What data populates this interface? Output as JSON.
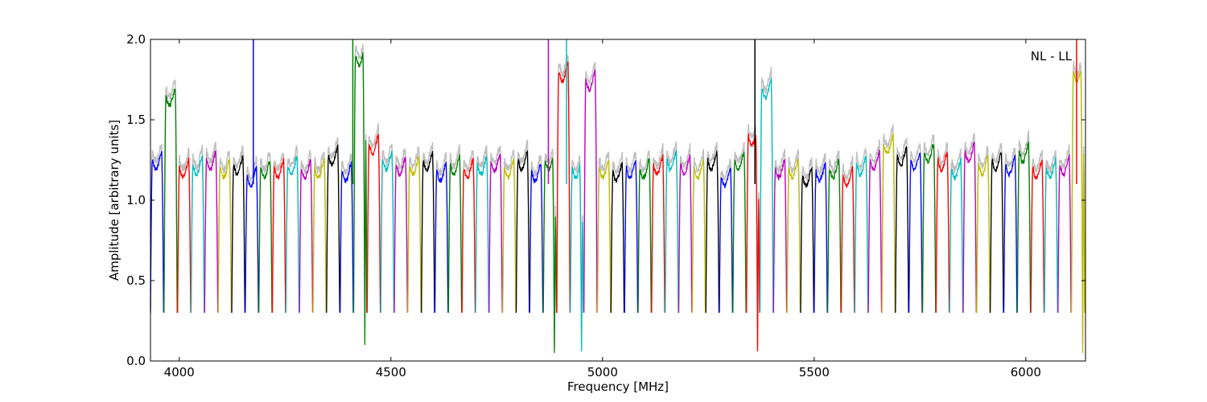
{
  "chart_data": {
    "type": "line",
    "xlabel": "Frequency [MHz]",
    "ylabel": "Amplitude [arbitrary units]",
    "annotation": "NL - LL",
    "xlim": [
      3932,
      6141
    ],
    "ylim": [
      0.0,
      2.0
    ],
    "xticks": [
      4000,
      4500,
      5000,
      5500,
      6000
    ],
    "xtick_labels": [
      "4000",
      "4500",
      "5000",
      "5500",
      "6000"
    ],
    "yticks": [
      0.0,
      0.5,
      1.0,
      1.5,
      2.0
    ],
    "ytick_labels": [
      "0.0",
      "0.5",
      "1.0",
      "1.5",
      "2.0"
    ],
    "grid": false,
    "segment_start": 3932,
    "segment_width_mhz": 32,
    "series_colors": [
      "#0000ff",
      "#008000",
      "#ff0000",
      "#00bfbf",
      "#bf00bf",
      "#bfbf00",
      "#000000"
    ],
    "background_trace_color": "#bfbfbf",
    "segment_plateau": [
      1.25,
      1.65,
      1.2,
      1.22,
      1.25,
      1.2,
      1.22,
      1.15,
      1.2,
      1.2,
      1.22,
      1.2,
      1.2,
      1.28,
      1.18,
      1.9,
      1.35,
      1.25,
      1.22,
      1.22,
      1.25,
      1.18,
      1.22,
      1.2,
      1.22,
      1.24,
      1.2,
      1.25,
      1.18,
      1.25,
      1.8,
      1.2,
      1.75,
      1.2,
      1.18,
      1.2,
      1.2,
      1.22,
      1.25,
      1.22,
      1.2,
      1.25,
      1.15,
      1.25,
      1.4,
      1.7,
      1.2,
      1.2,
      1.15,
      1.18,
      1.2,
      1.15,
      1.22,
      1.25,
      1.35,
      1.28,
      1.25,
      1.3,
      1.25,
      1.2,
      1.3,
      1.22,
      1.25,
      1.22,
      1.3,
      1.2,
      1.2,
      1.22,
      1.8
    ],
    "segment_min_default": 0.3,
    "deep_dips": [
      {
        "segment": 15,
        "min": 0.1
      },
      {
        "segment": 29,
        "min": 0.05
      },
      {
        "segment": 31,
        "min": 0.06
      },
      {
        "segment": 44,
        "min": 0.06
      },
      {
        "segment": 68,
        "min": 0.05
      }
    ],
    "spikes": [
      {
        "x": 4175,
        "y": 2.0,
        "color": "#0000ff"
      },
      {
        "x": 4410,
        "y": 2.0,
        "color": "#008000"
      },
      {
        "x": 4872,
        "y": 2.0,
        "color": "#bf00bf"
      },
      {
        "x": 4915,
        "y": 2.0,
        "color": "#00bfbf"
      },
      {
        "x": 5360,
        "y": 2.0,
        "color": "#000000"
      },
      {
        "x": 6120,
        "y": 2.0,
        "color": "#ff0000"
      }
    ]
  }
}
